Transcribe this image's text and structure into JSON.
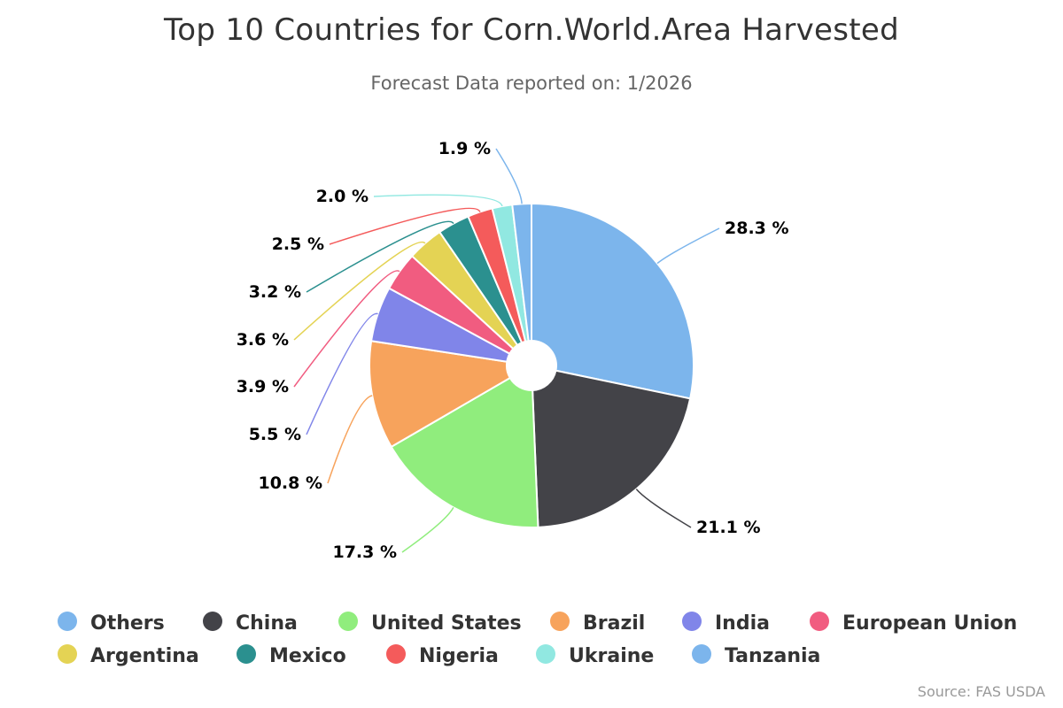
{
  "chart_data": {
    "type": "pie",
    "title": "Top 10 Countries for Corn.World.Area Harvested",
    "subtitle": "Forecast Data reported on: 1/2026",
    "credit": "Source: FAS USDA",
    "unit": "%",
    "legend_placement": "bottom",
    "slices": [
      {
        "name": "Others",
        "value": 28.3,
        "label": "28.3 %",
        "color": "#7cb5ec"
      },
      {
        "name": "China",
        "value": 21.1,
        "label": "21.1 %",
        "color": "#434348"
      },
      {
        "name": "United States",
        "value": 17.3,
        "label": "17.3 %",
        "color": "#90ed7d"
      },
      {
        "name": "Brazil",
        "value": 10.8,
        "label": "10.8 %",
        "color": "#f7a35c"
      },
      {
        "name": "India",
        "value": 5.5,
        "label": "5.5 %",
        "color": "#8085e9"
      },
      {
        "name": "European Union",
        "value": 3.9,
        "label": "3.9 %",
        "color": "#f15c80"
      },
      {
        "name": "Argentina",
        "value": 3.6,
        "label": "3.6 %",
        "color": "#e4d354"
      },
      {
        "name": "Mexico",
        "value": 3.2,
        "label": "3.2 %",
        "color": "#2b908f"
      },
      {
        "name": "Nigeria",
        "value": 2.5,
        "label": "2.5 %",
        "color": "#f45b5b"
      },
      {
        "name": "Ukraine",
        "value": 2.0,
        "label": "2.0 %",
        "color": "#91e8e1"
      },
      {
        "name": "Tanzania",
        "value": 1.9,
        "label": "1.9 %",
        "color": "#7cb5ec"
      }
    ]
  }
}
